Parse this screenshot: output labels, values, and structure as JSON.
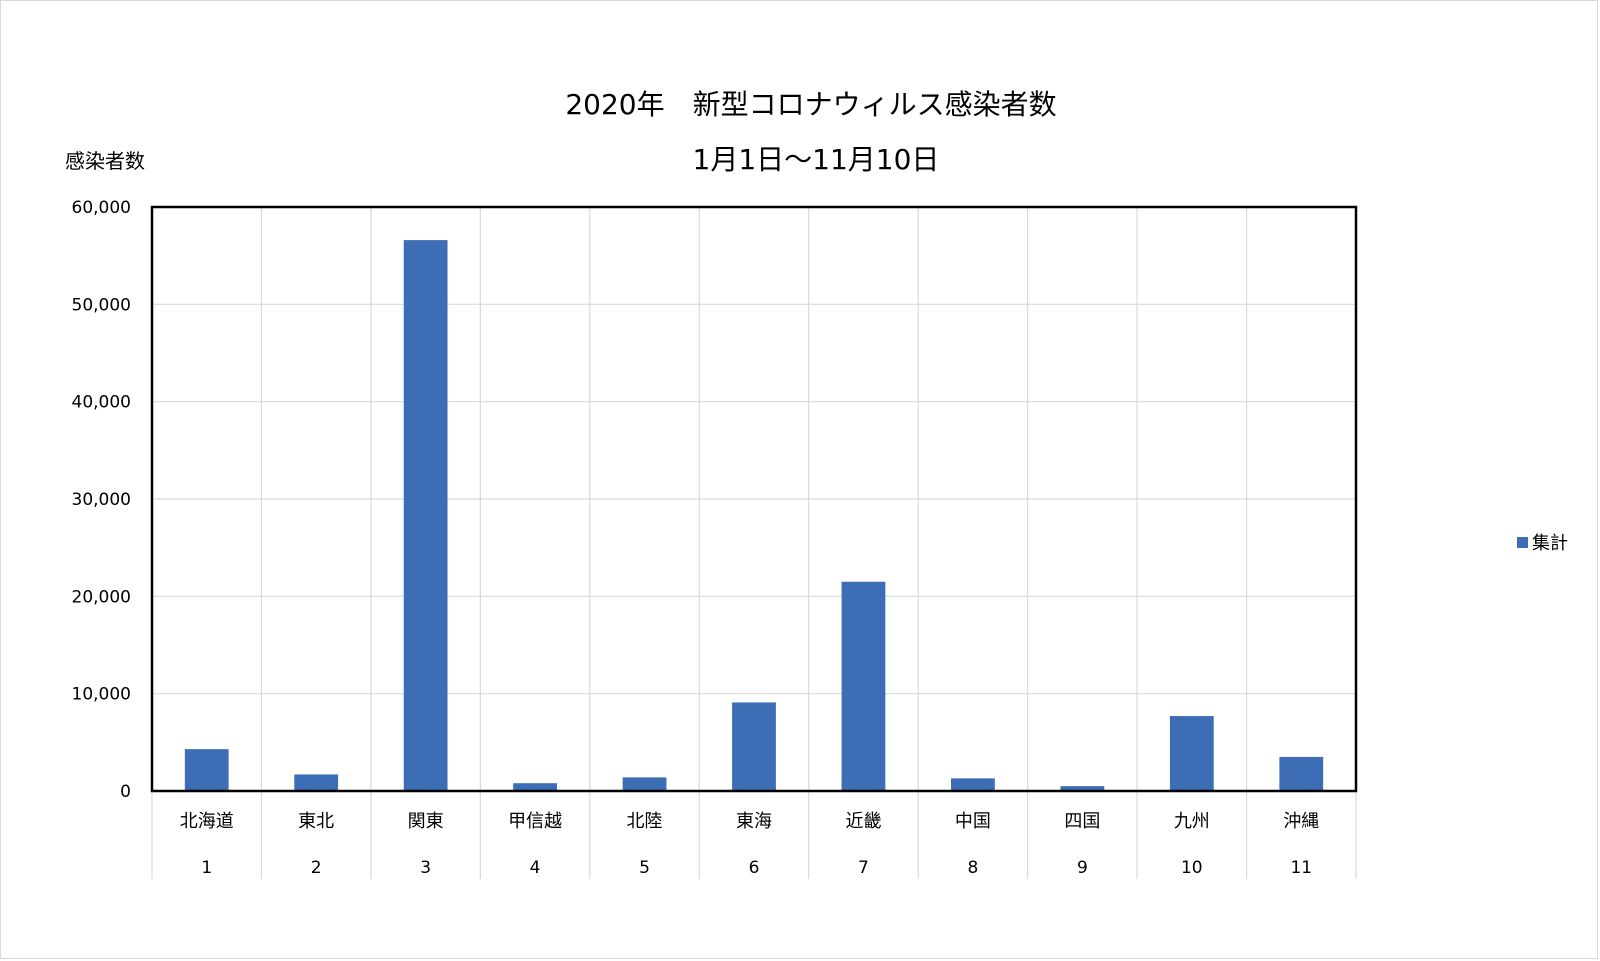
{
  "chart_data": {
    "type": "bar",
    "title": "2020年　新型コロナウィルス感染者数",
    "subtitle": "1月1日～11月10日",
    "ylabel": "感染者数",
    "xlabel": "",
    "ylim": [
      0,
      60000
    ],
    "yticks": [
      0,
      10000,
      20000,
      30000,
      40000,
      50000,
      60000
    ],
    "ytick_labels": [
      "0",
      "10,000",
      "20,000",
      "30,000",
      "40,000",
      "50,000",
      "60,000"
    ],
    "grid": true,
    "legend_position": "right",
    "categories": [
      "北海道",
      "東北",
      "関東",
      "甲信越",
      "北陸",
      "東海",
      "近畿",
      "中国",
      "四国",
      "九州",
      "沖縄"
    ],
    "category_numbers": [
      "1",
      "2",
      "3",
      "4",
      "5",
      "6",
      "7",
      "8",
      "9",
      "10",
      "11"
    ],
    "series": [
      {
        "name": "集計",
        "color": "#3c6db5",
        "values": [
          4300,
          1700,
          56600,
          800,
          1400,
          9100,
          21500,
          1300,
          500,
          7700,
          3500
        ]
      }
    ]
  }
}
